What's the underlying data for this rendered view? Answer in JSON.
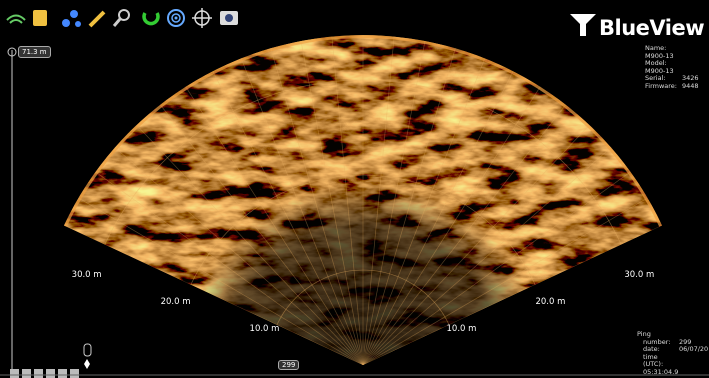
{
  "range_scale": "71.3 m",
  "logo": "BlueView",
  "device_info": [
    [
      "Name:",
      "M900-13"
    ],
    [
      "Model:",
      "M900-13"
    ],
    [
      "Serial:",
      "3426"
    ],
    [
      "Firmware:",
      "9448"
    ]
  ],
  "range_labels": {
    "left": [
      "10.0 m",
      "20.0 m",
      "30.0 m"
    ],
    "right": [
      "10.0 m",
      "20.0 m",
      "30.0 m"
    ]
  },
  "ping_slider": "299",
  "ping": {
    "title": "Ping",
    "rows": [
      [
        "number:",
        "299"
      ],
      [
        "date:",
        "06/07/20"
      ],
      [
        "time (UTC):",
        "05:31:04.9"
      ]
    ]
  }
}
